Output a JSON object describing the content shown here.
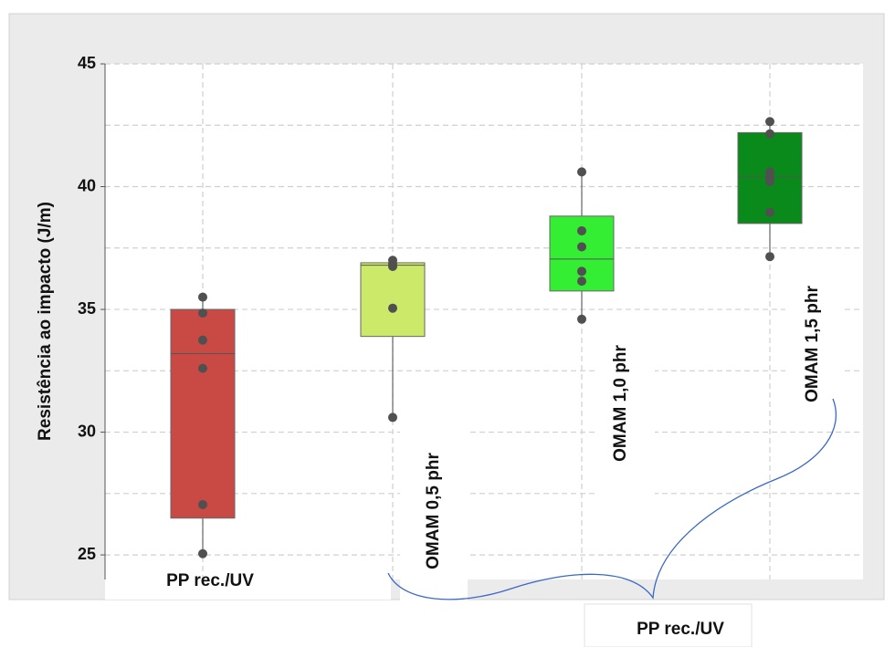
{
  "chart_data": {
    "type": "box",
    "y_label": "Resistência ao impacto (J/m)",
    "categories": [
      "PP rec./UV",
      "OMAM 0,5 phr",
      "OMAM 1,0 phr",
      "OMAM 1,5 phr"
    ],
    "boxes": [
      {
        "color": "#c94a45",
        "whisker_low": 25.05,
        "q1": 26.5,
        "median": 33.2,
        "q3": 35.0,
        "whisker_high": 35.5,
        "points": [
          35.5,
          34.85,
          33.75,
          32.6,
          27.05,
          25.05
        ]
      },
      {
        "color": "#cce96a",
        "whisker_low": 30.6,
        "q1": 33.9,
        "median": 36.8,
        "q3": 36.9,
        "whisker_high": 37.0,
        "points": [
          37.0,
          36.85,
          36.75,
          35.05,
          30.6
        ]
      },
      {
        "color": "#33ee33",
        "whisker_low": 34.6,
        "q1": 35.75,
        "median": 37.05,
        "q3": 38.8,
        "whisker_high": 40.6,
        "points": [
          40.6,
          38.2,
          37.55,
          36.55,
          36.15,
          34.6
        ]
      },
      {
        "color": "#0a8a1a",
        "whisker_low": 37.15,
        "q1": 38.5,
        "median": 40.4,
        "q3": 42.2,
        "whisker_high": 42.65,
        "points": [
          42.65,
          42.15,
          40.6,
          40.4,
          40.2,
          38.95,
          37.15
        ]
      }
    ],
    "ylim": [
      24,
      45
    ],
    "yticks": [
      25,
      30,
      35,
      40,
      45
    ],
    "minor_yticks": [
      27.5,
      32.5,
      37.5,
      42.5
    ],
    "grid": true,
    "annotation": "PP rec./UV"
  }
}
